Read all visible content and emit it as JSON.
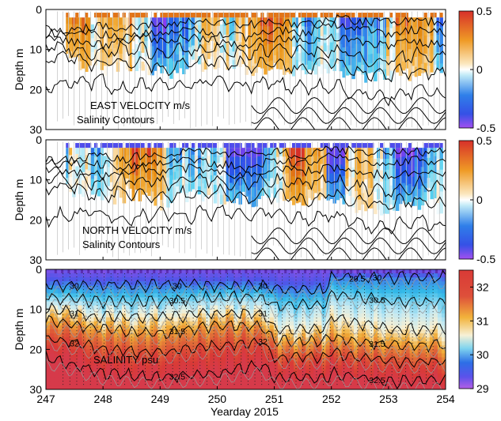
{
  "chart_data": [
    {
      "type": "heatmap",
      "variable": "east_velocity",
      "ylabel": "Depth  m",
      "ylim": [
        0,
        30
      ],
      "xlim": [
        247,
        254
      ],
      "yticks": [
        0,
        10,
        20,
        30
      ],
      "xticks": [
        247,
        248,
        249,
        250,
        251,
        252,
        253,
        254
      ],
      "annotations": [
        "EAST VELOCITY  m/s",
        "Salinity Contours"
      ],
      "colorbar": {
        "range": [
          -0.5,
          0.5
        ],
        "ticks": [
          0.5,
          0,
          -0.5
        ],
        "tick_labels": [
          "0.5",
          "0",
          "-0.5"
        ]
      },
      "contour_depths_at_start": [
        5,
        6,
        7,
        9,
        12,
        20
      ]
    },
    {
      "type": "heatmap",
      "variable": "north_velocity",
      "ylabel": "Depth  m",
      "ylim": [
        0,
        30
      ],
      "xlim": [
        247,
        254
      ],
      "yticks": [
        0,
        10,
        20,
        30
      ],
      "xticks": [
        247,
        248,
        249,
        250,
        251,
        252,
        253,
        254
      ],
      "annotations": [
        "NORTH VELOCITY   m/s",
        "Salinity Contours"
      ],
      "colorbar": {
        "range": [
          -0.5,
          0.5
        ],
        "ticks": [
          0.5,
          0,
          -0.5
        ],
        "tick_labels": [
          "0.5",
          "0",
          "-0.5"
        ]
      },
      "contour_depths_at_start": [
        5,
        6,
        7,
        9,
        12,
        20
      ]
    },
    {
      "type": "heatmap",
      "variable": "salinity",
      "ylabel": "Depth  m",
      "xlabel": "Yearday 2015",
      "ylim": [
        0,
        30
      ],
      "xlim": [
        247,
        254
      ],
      "yticks": [
        0,
        10,
        20,
        30
      ],
      "xticks": [
        247,
        248,
        249,
        250,
        251,
        252,
        253,
        254
      ],
      "tick_labels_x": [
        "247",
        "248",
        "249",
        "250",
        "251",
        "252",
        "253",
        "254"
      ],
      "annotations": [
        "SALINITY  psu"
      ],
      "contour_labels": [
        "29.5",
        "30",
        "30.5",
        "31",
        "31.5",
        "32",
        "32.5"
      ],
      "colorbar": {
        "range": [
          29,
          32.5
        ],
        "ticks": [
          32,
          31,
          30,
          29
        ],
        "tick_labels": [
          "32",
          "31",
          "30",
          "29"
        ]
      },
      "salinity_layers": [
        {
          "x": [
            247,
            248,
            249,
            250,
            250.8,
            251,
            251.9,
            252,
            253,
            254
          ],
          "depth": [
            4,
            4,
            4,
            4,
            4,
            5,
            5,
            2,
            2,
            2
          ],
          "label": "30"
        },
        {
          "x": [
            247,
            248,
            249,
            250,
            250.8,
            251,
            251.9,
            252,
            253,
            254
          ],
          "depth": [
            7,
            8,
            8,
            7,
            7,
            9,
            9,
            6,
            8,
            8
          ],
          "label": "30.5"
        },
        {
          "x": [
            247,
            248,
            249,
            250,
            250.8,
            251,
            251.9,
            252,
            253,
            254
          ],
          "depth": [
            10,
            12,
            12,
            11,
            11,
            15,
            15,
            12,
            15,
            15
          ],
          "label": "31"
        },
        {
          "x": [
            247,
            248,
            249,
            250,
            250.8,
            251,
            251.9,
            252,
            253,
            254
          ],
          "depth": [
            13,
            15,
            16,
            14,
            14,
            18,
            18,
            17,
            19,
            19
          ],
          "label": "31.5"
        },
        {
          "x": [
            247,
            248,
            249,
            250,
            250.8,
            251,
            251.9,
            252,
            253,
            254
          ],
          "depth": [
            17,
            20,
            21,
            19,
            18,
            22,
            22,
            21,
            23,
            23
          ],
          "label": "32"
        },
        {
          "x": [
            247,
            248,
            249,
            250,
            250.8,
            251,
            251.9,
            252,
            253,
            254
          ],
          "depth": [
            22,
            26,
            27,
            26,
            24,
            27,
            27,
            26,
            28,
            28
          ],
          "label": "32.5"
        }
      ]
    }
  ],
  "colors": {
    "negative_strong": "#8a3df0",
    "negative": "#1f58e8",
    "negative_weak": "#53cfee",
    "neutral": "#ffffff",
    "positive_weak": "#f5b340",
    "positive": "#e58a10",
    "positive_strong": "#d7302a",
    "salinity_low": "#9a4fe6",
    "salinity_mid": "#33b9e8",
    "salinity_high": "#d93a36",
    "contour": "#000000",
    "profile_line": "#c8c8c8"
  }
}
